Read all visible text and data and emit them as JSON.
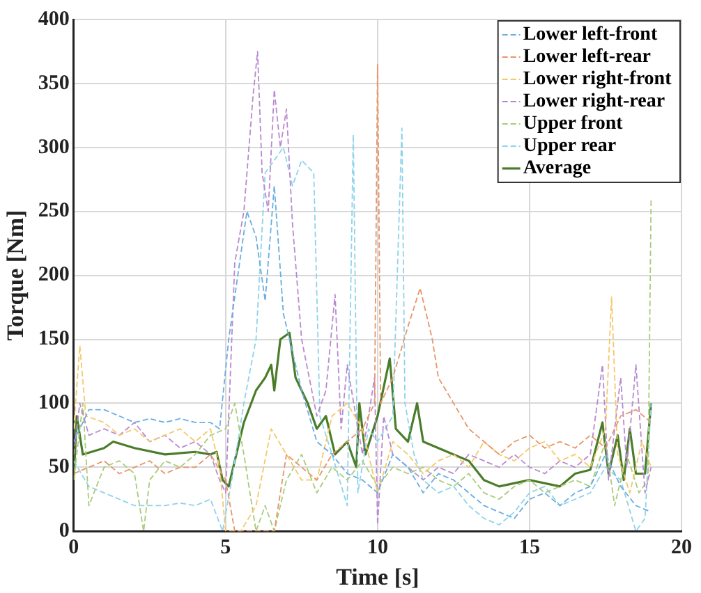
{
  "chart_data": {
    "type": "line",
    "xlabel": "Time [s]",
    "ylabel": "Torque [Nm]",
    "xlim": [
      0,
      20
    ],
    "xticks": [
      0,
      5,
      10,
      15,
      20
    ],
    "ylim": [
      0,
      400
    ],
    "yticks": [
      0,
      50,
      100,
      150,
      200,
      250,
      300,
      350,
      400
    ],
    "grid": true,
    "legend": "top right",
    "marker": "none",
    "series": [
      {
        "name": "Lower left-front",
        "color": "#6aaee0",
        "line_style": "dashed",
        "x": [
          0,
          0.5,
          1,
          1.5,
          2,
          2.5,
          3,
          3.5,
          4,
          4.5,
          4.8,
          5.1,
          5.4,
          5.7,
          6,
          6.3,
          6.6,
          6.9,
          7.2,
          7.5,
          8,
          8.5,
          9,
          9.5,
          10,
          10.5,
          11,
          11.5,
          12,
          12.5,
          13,
          13.5,
          14,
          14.5,
          15,
          15.5,
          16,
          16.5,
          17,
          17.5,
          18,
          18.5,
          19
        ],
        "values": [
          70,
          95,
          95,
          90,
          85,
          88,
          85,
          88,
          85,
          85,
          80,
          150,
          200,
          250,
          230,
          180,
          270,
          170,
          140,
          110,
          70,
          60,
          45,
          40,
          30,
          60,
          50,
          30,
          45,
          40,
          30,
          20,
          15,
          10,
          25,
          30,
          20,
          30,
          35,
          60,
          35,
          20,
          15
        ]
      },
      {
        "name": "Lower left-rear",
        "color": "#e8956a",
        "line_style": "dashed",
        "x": [
          0,
          0.5,
          1,
          1.5,
          2,
          2.5,
          3,
          3.5,
          4,
          4.5,
          5,
          5.3,
          6.6,
          7,
          7.5,
          8,
          8.5,
          9,
          9.5,
          9.9,
          10,
          10.1,
          10.5,
          11,
          11.4,
          11.8,
          12,
          12.5,
          13,
          13.5,
          14,
          14.5,
          15,
          15.5,
          16,
          16.5,
          17,
          17.5,
          18,
          18.5,
          19
        ],
        "values": [
          45,
          50,
          55,
          45,
          50,
          55,
          45,
          50,
          50,
          60,
          40,
          0,
          0,
          60,
          50,
          40,
          60,
          70,
          80,
          100,
          365,
          100,
          120,
          160,
          190,
          150,
          120,
          100,
          80,
          70,
          60,
          70,
          75,
          65,
          70,
          65,
          75,
          65,
          90,
          95,
          85
        ]
      },
      {
        "name": "Lower right-front",
        "color": "#f5c86a",
        "line_style": "dashed",
        "x": [
          0,
          0.2,
          0.4,
          1,
          1.5,
          2,
          2.5,
          3,
          3.5,
          4,
          4.5,
          4.8,
          5,
          5.5,
          6,
          6.5,
          7,
          7.5,
          8,
          8.5,
          9,
          9.5,
          10,
          10.5,
          11,
          11.5,
          12,
          12.5,
          13,
          13.5,
          14,
          14.5,
          15,
          15.5,
          16,
          16.5,
          17,
          17.5,
          17.7,
          17.9,
          18.3,
          18.7,
          19
        ],
        "values": [
          80,
          145,
          90,
          85,
          75,
          80,
          70,
          75,
          80,
          70,
          80,
          50,
          0,
          0,
          20,
          80,
          60,
          40,
          40,
          90,
          100,
          80,
          30,
          70,
          60,
          45,
          55,
          60,
          50,
          70,
          60,
          55,
          65,
          70,
          55,
          60,
          50,
          80,
          183,
          60,
          30,
          70,
          50
        ]
      },
      {
        "name": "Lower right-rear",
        "color": "#b98ad0",
        "line_style": "dashed",
        "x": [
          0,
          0.2,
          0.5,
          1,
          1.5,
          2,
          2.5,
          3,
          3.5,
          4,
          4.5,
          4.8,
          5,
          5.3,
          5.6,
          5.9,
          6.05,
          6.2,
          6.4,
          6.6,
          6.8,
          7,
          7.2,
          7.5,
          8,
          8.3,
          8.6,
          8.8,
          9,
          9.5,
          9.9,
          10,
          10.2,
          10.5,
          11,
          11.5,
          12,
          12.5,
          13,
          13.5,
          14,
          14.5,
          15,
          15.5,
          16,
          16.5,
          17,
          17.4,
          17.6,
          18,
          18.2,
          18.5,
          18.8,
          19
        ],
        "values": [
          60,
          100,
          75,
          80,
          75,
          85,
          70,
          75,
          65,
          70,
          60,
          40,
          30,
          210,
          250,
          340,
          375,
          280,
          250,
          345,
          300,
          330,
          240,
          150,
          90,
          110,
          185,
          80,
          130,
          60,
          120,
          5,
          90,
          60,
          50,
          40,
          50,
          45,
          60,
          55,
          50,
          60,
          50,
          45,
          55,
          50,
          60,
          130,
          40,
          120,
          50,
          130,
          30,
          50
        ]
      },
      {
        "name": "Upper front",
        "color": "#a9cc7a",
        "line_style": "dashed",
        "x": [
          0,
          0.3,
          0.5,
          1,
          1.5,
          2,
          2.3,
          2.5,
          3,
          3.5,
          4,
          4.5,
          5,
          5.3,
          5.6,
          6,
          6.3,
          6.6,
          7,
          7.5,
          8,
          8.5,
          9,
          9.5,
          10,
          10.5,
          11,
          11.5,
          12,
          12.5,
          13,
          13.5,
          14,
          14.5,
          15,
          15.5,
          16,
          16.5,
          17,
          17.5,
          17.8,
          18.2,
          18.6,
          18.9,
          19
        ],
        "values": [
          40,
          100,
          20,
          50,
          55,
          45,
          0,
          40,
          55,
          50,
          60,
          75,
          80,
          100,
          60,
          0,
          20,
          0,
          40,
          60,
          30,
          50,
          40,
          55,
          35,
          50,
          45,
          50,
          40,
          35,
          45,
          30,
          25,
          35,
          40,
          30,
          35,
          40,
          35,
          70,
          20,
          60,
          30,
          40,
          260
        ]
      },
      {
        "name": "Upper rear",
        "color": "#8fd3ea",
        "line_style": "dashed",
        "x": [
          0,
          0.5,
          1,
          1.5,
          2,
          2.5,
          3,
          3.5,
          4,
          4.5,
          4.9,
          5.2,
          5.6,
          6,
          6.3,
          6.6,
          6.9,
          7.2,
          7.5,
          7.9,
          8.1,
          8.5,
          9,
          9.2,
          9.35,
          9.7,
          10,
          10.5,
          10.8,
          10.9,
          11.2,
          11.5,
          12,
          12.5,
          13,
          13.5,
          14,
          14.5,
          15,
          15.5,
          16,
          16.5,
          17,
          17.5,
          18,
          18.5,
          18.8,
          19
        ],
        "values": [
          55,
          35,
          30,
          25,
          20,
          20,
          20,
          22,
          20,
          25,
          0,
          40,
          100,
          150,
          280,
          290,
          300,
          270,
          290,
          280,
          90,
          60,
          20,
          310,
          30,
          80,
          70,
          90,
          315,
          100,
          60,
          40,
          30,
          35,
          20,
          10,
          5,
          15,
          30,
          35,
          20,
          25,
          30,
          50,
          40,
          0,
          10,
          100
        ]
      },
      {
        "name": "Average",
        "color": "#4a7d2a",
        "line_style": "solid",
        "x": [
          0,
          0.1,
          0.3,
          1,
          1.3,
          2,
          3,
          4,
          4.5,
          4.7,
          4.9,
          5.1,
          5.3,
          5.6,
          6,
          6.3,
          6.5,
          6.6,
          6.8,
          7.1,
          7.3,
          7.7,
          8,
          8.3,
          8.6,
          9,
          9.3,
          9.4,
          9.6,
          10,
          10.4,
          10.6,
          11,
          11.3,
          11.5,
          12,
          12.5,
          13,
          13.5,
          14,
          15,
          16,
          16.5,
          17,
          17.4,
          17.6,
          17.9,
          18.1,
          18.3,
          18.5,
          18.8,
          19
        ],
        "values": [
          40,
          90,
          60,
          65,
          70,
          65,
          60,
          62,
          60,
          62,
          40,
          35,
          55,
          85,
          110,
          120,
          130,
          110,
          150,
          155,
          120,
          100,
          80,
          90,
          60,
          70,
          50,
          100,
          60,
          90,
          135,
          80,
          70,
          100,
          70,
          65,
          60,
          55,
          40,
          35,
          40,
          35,
          45,
          48,
          85,
          45,
          75,
          40,
          80,
          45,
          45,
          100
        ]
      }
    ]
  }
}
